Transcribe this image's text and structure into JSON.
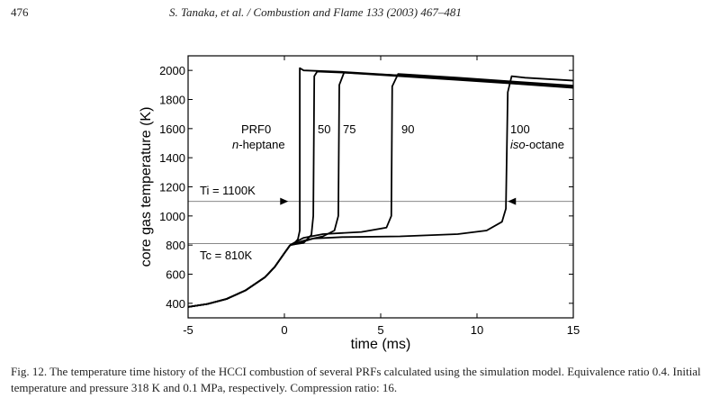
{
  "header": {
    "page_number": "476",
    "running_title": "S. Tanaka, et al. / Combustion and Flame 133 (2003) 467–481"
  },
  "caption": {
    "text": "Fig. 12. The temperature time history of the HCCI combustion of several PRFs calculated using the simulation model. Equivalence ratio 0.4. Initial temperature and pressure 318 K and 0.1 MPa, respectively. Compression ratio: 16."
  },
  "chart_data": {
    "type": "line",
    "xlabel": "time (ms)",
    "ylabel": "core gas temperature (K)",
    "xlim": [
      -5,
      15
    ],
    "ylim": [
      300,
      2100
    ],
    "xticks": [
      -5,
      0,
      5,
      10,
      15
    ],
    "yticks": [
      400,
      600,
      800,
      1000,
      1200,
      1400,
      1600,
      1800,
      2000
    ],
    "reference_lines": [
      {
        "y": 1100,
        "label": "Ti = 1100K"
      },
      {
        "y": 810,
        "label": "Tc = 810K"
      }
    ],
    "series": [
      {
        "name": "PRF0",
        "name2": "n-heptane",
        "x": [
          -5,
          -4,
          -3,
          -2,
          -1,
          -0.5,
          0,
          0.3,
          0.5,
          0.7,
          0.8,
          0.8,
          1.0,
          3,
          6,
          9,
          12,
          15
        ],
        "y": [
          375,
          395,
          430,
          490,
          580,
          650,
          745,
          800,
          810,
          840,
          900,
          2015,
          2000,
          1990,
          1965,
          1940,
          1910,
          1885
        ]
      },
      {
        "name": "50",
        "x": [
          -5,
          -4,
          -3,
          -2,
          -1,
          -0.5,
          0,
          0.3,
          0.5,
          1.0,
          1.4,
          1.5,
          1.55,
          1.7,
          3,
          6,
          9,
          12,
          15
        ],
        "y": [
          375,
          395,
          430,
          490,
          580,
          650,
          745,
          800,
          805,
          815,
          870,
          1000,
          1960,
          1992,
          1985,
          1960,
          1935,
          1908,
          1880
        ]
      },
      {
        "name": "75",
        "x": [
          -5,
          -4,
          -3,
          -2,
          -1,
          -0.5,
          0,
          0.3,
          0.5,
          1.0,
          2.0,
          2.6,
          2.8,
          2.85,
          3.1,
          6,
          9,
          12,
          15
        ],
        "y": [
          375,
          395,
          430,
          490,
          580,
          650,
          745,
          800,
          810,
          830,
          860,
          900,
          1000,
          1900,
          1985,
          1965,
          1940,
          1912,
          1885
        ]
      },
      {
        "name": "90",
        "x": [
          -5,
          -4,
          -3,
          -2,
          -1,
          -0.5,
          0,
          0.3,
          0.5,
          1.0,
          2,
          4,
          5.3,
          5.55,
          5.6,
          5.9,
          9,
          12,
          15
        ],
        "y": [
          375,
          395,
          430,
          490,
          580,
          650,
          745,
          800,
          815,
          850,
          875,
          890,
          920,
          1000,
          1890,
          1975,
          1950,
          1922,
          1895
        ]
      },
      {
        "name": "100",
        "name2": "iso-octane",
        "x": [
          -5,
          -4,
          -3,
          -2,
          -1,
          -0.5,
          0,
          0.3,
          0.5,
          1.5,
          3,
          6,
          9,
          10.5,
          11.3,
          11.5,
          11.6,
          11.8,
          12.5,
          15
        ],
        "y": [
          375,
          395,
          430,
          490,
          580,
          650,
          745,
          800,
          805,
          845,
          855,
          860,
          875,
          900,
          960,
          1050,
          1850,
          1960,
          1950,
          1930
        ]
      }
    ]
  }
}
